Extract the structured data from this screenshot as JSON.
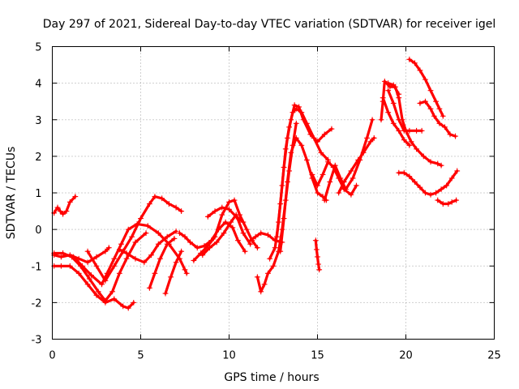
{
  "chart_data": {
    "type": "scatter",
    "title": "Day 297 of 2021, Sidereal Day-to-day VTEC variation (SDTVAR) for receiver igel",
    "xlabel": "GPS time / hours",
    "ylabel": "SDTVAR / TECUs",
    "xlim": [
      0,
      25
    ],
    "ylim": [
      -3,
      5
    ],
    "xticks": [
      0,
      5,
      10,
      15,
      20,
      25
    ],
    "yticks": [
      -3,
      -2,
      -1,
      0,
      1,
      2,
      3,
      4,
      5
    ],
    "grid": true,
    "marker": "plus",
    "color": "#ff0000",
    "series": [
      {
        "points": [
          [
            0.1,
            0.45
          ],
          [
            0.3,
            0.6
          ],
          [
            0.45,
            0.5
          ],
          [
            0.6,
            0.42
          ],
          [
            0.8,
            0.5
          ],
          [
            1.0,
            0.75
          ],
          [
            1.3,
            0.9
          ]
        ]
      },
      {
        "points": [
          [
            0.1,
            -0.7
          ],
          [
            0.5,
            -0.75
          ],
          [
            1.0,
            -0.7
          ],
          [
            1.5,
            -0.8
          ],
          [
            2.0,
            -0.9
          ],
          [
            2.5,
            -0.75
          ],
          [
            3.0,
            -0.6
          ],
          [
            3.2,
            -0.5
          ]
        ]
      },
      {
        "points": [
          [
            0.1,
            -1.0
          ],
          [
            0.5,
            -1.0
          ],
          [
            1.0,
            -1.0
          ],
          [
            1.5,
            -1.2
          ],
          [
            2.0,
            -1.5
          ],
          [
            2.5,
            -1.8
          ],
          [
            3.0,
            -2.0
          ],
          [
            3.5,
            -1.9
          ],
          [
            4.0,
            -2.1
          ],
          [
            4.3,
            -2.15
          ],
          [
            4.6,
            -2.0
          ]
        ]
      },
      {
        "points": [
          [
            0.1,
            -0.65
          ],
          [
            0.6,
            -0.65
          ],
          [
            1.1,
            -0.75
          ],
          [
            1.6,
            -1.0
          ],
          [
            2.1,
            -1.35
          ],
          [
            2.6,
            -1.7
          ],
          [
            3.0,
            -1.95
          ],
          [
            3.4,
            -1.7
          ],
          [
            3.8,
            -1.2
          ],
          [
            4.2,
            -0.8
          ],
          [
            4.7,
            -0.35
          ],
          [
            5.3,
            -0.1
          ]
        ]
      },
      {
        "points": [
          [
            1.2,
            -0.75
          ],
          [
            1.7,
            -1.0
          ],
          [
            2.2,
            -1.25
          ],
          [
            2.8,
            -1.5
          ],
          [
            3.1,
            -1.2
          ],
          [
            3.5,
            -0.8
          ],
          [
            3.9,
            -0.4
          ],
          [
            4.3,
            0.0
          ],
          [
            4.8,
            0.15
          ],
          [
            5.4,
            0.1
          ],
          [
            6.0,
            -0.1
          ],
          [
            6.6,
            -0.4
          ],
          [
            7.2,
            -0.8
          ],
          [
            7.5,
            -1.1
          ],
          [
            7.6,
            -1.2
          ]
        ]
      },
      {
        "points": [
          [
            2.0,
            -0.6
          ],
          [
            2.5,
            -1.0
          ],
          [
            3.0,
            -1.4
          ],
          [
            3.5,
            -1.0
          ],
          [
            4.0,
            -0.6
          ],
          [
            4.5,
            -0.2
          ],
          [
            5.0,
            0.3
          ],
          [
            5.5,
            0.7
          ],
          [
            5.8,
            0.9
          ],
          [
            6.2,
            0.85
          ],
          [
            6.6,
            0.7
          ],
          [
            7.0,
            0.6
          ],
          [
            7.3,
            0.5
          ]
        ]
      },
      {
        "points": [
          [
            3.8,
            -0.55
          ],
          [
            4.2,
            -0.65
          ],
          [
            4.7,
            -0.8
          ],
          [
            5.2,
            -0.9
          ],
          [
            5.6,
            -0.7
          ],
          [
            6.0,
            -0.4
          ],
          [
            6.5,
            -0.2
          ],
          [
            7.0,
            -0.05
          ]
        ]
      },
      {
        "points": [
          [
            5.5,
            -1.6
          ],
          [
            5.8,
            -1.2
          ],
          [
            6.1,
            -0.8
          ],
          [
            6.5,
            -0.4
          ],
          [
            6.9,
            -0.25
          ]
        ]
      },
      {
        "points": [
          [
            6.4,
            -1.75
          ],
          [
            6.7,
            -1.3
          ],
          [
            7.0,
            -0.9
          ],
          [
            7.3,
            -0.6
          ]
        ]
      },
      {
        "points": [
          [
            7.2,
            -0.1
          ],
          [
            7.5,
            -0.2
          ],
          [
            7.8,
            -0.35
          ],
          [
            8.2,
            -0.5
          ],
          [
            8.6,
            -0.45
          ],
          [
            9.0,
            -0.3
          ],
          [
            9.4,
            0.0
          ],
          [
            9.8,
            0.2
          ],
          [
            10.2,
            0.05
          ],
          [
            10.5,
            -0.3
          ],
          [
            10.9,
            -0.6
          ]
        ]
      },
      {
        "points": [
          [
            8.0,
            -0.85
          ],
          [
            8.4,
            -0.65
          ],
          [
            8.8,
            -0.45
          ],
          [
            9.2,
            -0.2
          ],
          [
            9.6,
            0.4
          ],
          [
            10.0,
            0.75
          ],
          [
            10.3,
            0.8
          ],
          [
            10.6,
            0.4
          ],
          [
            11.0,
            0.0
          ],
          [
            11.3,
            -0.3
          ],
          [
            11.6,
            -0.5
          ]
        ]
      },
      {
        "points": [
          [
            8.5,
            -0.7
          ],
          [
            8.9,
            -0.5
          ],
          [
            9.3,
            -0.35
          ],
          [
            9.7,
            -0.1
          ],
          [
            10.1,
            0.2
          ],
          [
            10.4,
            0.4
          ],
          [
            10.8,
            -0.1
          ],
          [
            11.2,
            -0.4
          ]
        ]
      },
      {
        "points": [
          [
            8.8,
            0.35
          ],
          [
            9.2,
            0.5
          ],
          [
            9.6,
            0.6
          ],
          [
            10.0,
            0.55
          ],
          [
            10.4,
            0.35
          ],
          [
            10.8,
            0.2
          ]
        ]
      },
      {
        "points": [
          [
            11.2,
            -0.3
          ],
          [
            11.5,
            -0.2
          ],
          [
            11.8,
            -0.1
          ],
          [
            12.2,
            -0.15
          ],
          [
            12.6,
            -0.3
          ],
          [
            13.0,
            -0.35
          ]
        ]
      },
      {
        "points": [
          [
            11.6,
            -1.3
          ],
          [
            11.8,
            -1.7
          ],
          [
            12.0,
            -1.5
          ],
          [
            12.2,
            -1.2
          ],
          [
            12.5,
            -1.0
          ],
          [
            12.8,
            -0.6
          ],
          [
            13.0,
            0.0
          ],
          [
            13.2,
            0.8
          ],
          [
            13.4,
            1.6
          ],
          [
            13.6,
            2.3
          ],
          [
            13.8,
            2.9
          ]
        ]
      },
      {
        "points": [
          [
            12.3,
            -0.8
          ],
          [
            12.6,
            -0.5
          ],
          [
            12.8,
            0.2
          ],
          [
            13.0,
            1.2
          ],
          [
            13.2,
            2.2
          ],
          [
            13.4,
            2.8
          ],
          [
            13.6,
            3.2
          ],
          [
            13.8,
            3.3
          ],
          [
            14.1,
            3.2
          ],
          [
            14.4,
            2.9
          ],
          [
            14.8,
            2.5
          ],
          [
            15.2,
            2.1
          ],
          [
            15.6,
            1.9
          ]
        ]
      },
      {
        "points": [
          [
            12.7,
            -0.2
          ],
          [
            12.9,
            0.7
          ],
          [
            13.1,
            1.7
          ],
          [
            13.3,
            2.5
          ],
          [
            13.5,
            3.0
          ],
          [
            13.7,
            3.4
          ],
          [
            13.95,
            3.35
          ],
          [
            14.2,
            3.0
          ],
          [
            14.6,
            2.6
          ],
          [
            15.0,
            2.4
          ],
          [
            15.4,
            2.6
          ],
          [
            15.8,
            2.75
          ]
        ]
      },
      {
        "points": [
          [
            12.9,
            -0.6
          ],
          [
            13.1,
            0.3
          ],
          [
            13.3,
            1.3
          ],
          [
            13.5,
            2.1
          ],
          [
            13.8,
            2.5
          ],
          [
            14.1,
            2.3
          ],
          [
            14.4,
            1.9
          ],
          [
            14.7,
            1.4
          ],
          [
            15.0,
            1.0
          ],
          [
            15.3,
            0.9
          ],
          [
            15.5,
            0.8
          ]
        ]
      },
      {
        "points": [
          [
            14.7,
            1.5
          ],
          [
            15.0,
            1.2
          ],
          [
            15.3,
            1.5
          ],
          [
            15.6,
            1.85
          ],
          [
            15.9,
            1.7
          ],
          [
            16.2,
            1.4
          ],
          [
            16.5,
            1.1
          ],
          [
            16.9,
            0.95
          ],
          [
            17.2,
            1.2
          ]
        ]
      },
      {
        "points": [
          [
            15.4,
            0.8
          ],
          [
            15.7,
            1.3
          ],
          [
            16.0,
            1.75
          ],
          [
            16.3,
            1.4
          ],
          [
            16.6,
            1.1
          ],
          [
            17.0,
            1.4
          ],
          [
            17.4,
            1.9
          ],
          [
            17.8,
            2.5
          ],
          [
            18.1,
            3.0
          ]
        ]
      },
      {
        "points": [
          [
            16.2,
            1.0
          ],
          [
            16.5,
            1.3
          ],
          [
            16.9,
            1.6
          ],
          [
            17.3,
            1.9
          ],
          [
            17.6,
            2.1
          ],
          [
            18.0,
            2.4
          ],
          [
            18.2,
            2.5
          ]
        ]
      },
      {
        "points": [
          [
            14.9,
            -0.3
          ],
          [
            14.95,
            -0.55
          ],
          [
            15.0,
            -0.75
          ],
          [
            15.05,
            -0.95
          ],
          [
            15.1,
            -1.1
          ]
        ]
      },
      {
        "points": [
          [
            18.6,
            3.0
          ],
          [
            18.7,
            3.5
          ],
          [
            18.8,
            4.05
          ],
          [
            19.1,
            3.9
          ],
          [
            19.4,
            3.9
          ],
          [
            19.6,
            3.6
          ],
          [
            19.8,
            3.0
          ],
          [
            20.0,
            2.7
          ],
          [
            20.3,
            2.4
          ],
          [
            20.6,
            2.2
          ],
          [
            21.0,
            2.0
          ],
          [
            21.4,
            1.85
          ],
          [
            21.8,
            1.8
          ],
          [
            22.0,
            1.75
          ]
        ]
      },
      {
        "points": [
          [
            18.7,
            3.6
          ],
          [
            19.0,
            3.2
          ],
          [
            19.3,
            2.9
          ],
          [
            19.6,
            2.7
          ],
          [
            19.9,
            2.45
          ],
          [
            20.2,
            2.3
          ]
        ]
      },
      {
        "points": [
          [
            19.0,
            3.8
          ],
          [
            19.3,
            3.45
          ],
          [
            19.6,
            3.0
          ],
          [
            19.9,
            2.7
          ],
          [
            20.2,
            2.7
          ],
          [
            20.6,
            2.7
          ],
          [
            20.9,
            2.7
          ]
        ]
      },
      {
        "points": [
          [
            19.0,
            4.0
          ],
          [
            19.3,
            3.95
          ],
          [
            19.6,
            3.7
          ]
        ]
      },
      {
        "points": [
          [
            20.2,
            4.65
          ],
          [
            20.5,
            4.55
          ],
          [
            20.8,
            4.35
          ],
          [
            21.1,
            4.1
          ],
          [
            21.4,
            3.8
          ],
          [
            21.7,
            3.5
          ],
          [
            21.9,
            3.3
          ],
          [
            22.1,
            3.1
          ]
        ]
      },
      {
        "points": [
          [
            20.8,
            3.45
          ],
          [
            21.1,
            3.5
          ],
          [
            21.4,
            3.3
          ],
          [
            21.6,
            3.1
          ],
          [
            21.9,
            2.9
          ],
          [
            22.2,
            2.8
          ],
          [
            22.5,
            2.6
          ],
          [
            22.8,
            2.55
          ]
        ]
      },
      {
        "points": [
          [
            19.6,
            1.55
          ],
          [
            19.9,
            1.55
          ],
          [
            20.2,
            1.45
          ],
          [
            20.5,
            1.3
          ],
          [
            20.8,
            1.15
          ],
          [
            21.1,
            1.0
          ],
          [
            21.4,
            0.95
          ],
          [
            21.7,
            1.0
          ],
          [
            22.0,
            1.1
          ],
          [
            22.3,
            1.2
          ],
          [
            22.6,
            1.4
          ],
          [
            22.9,
            1.6
          ]
        ]
      },
      {
        "points": [
          [
            21.8,
            0.8
          ],
          [
            22.1,
            0.7
          ],
          [
            22.4,
            0.7
          ],
          [
            22.6,
            0.75
          ],
          [
            22.85,
            0.8
          ]
        ]
      }
    ]
  }
}
